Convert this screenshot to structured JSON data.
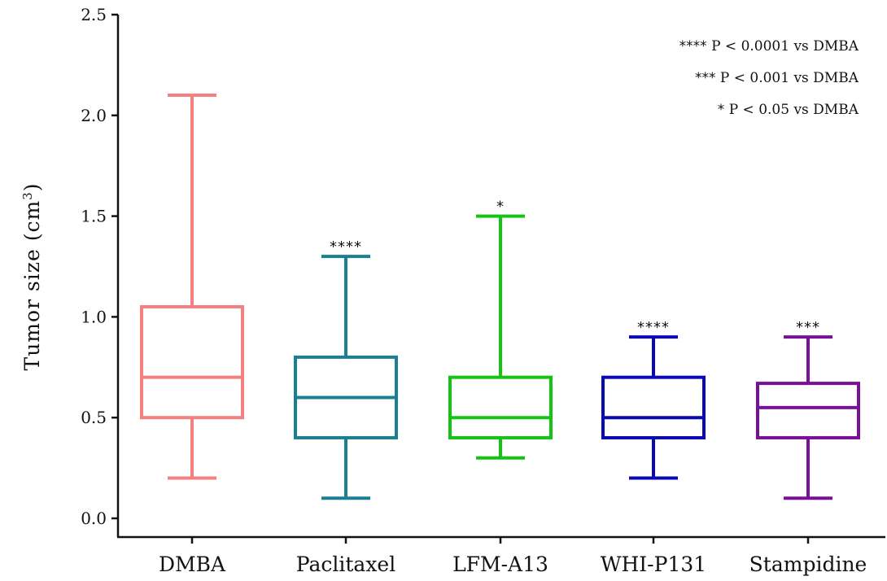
{
  "chart_data": {
    "type": "box",
    "title": "",
    "xlabel": "",
    "ylabel": "Tumor size (cm",
    "ylabel_sup": "3",
    "ylabel_close": ")",
    "ylim": [
      0.0,
      2.5
    ],
    "yticks": [
      0.0,
      0.5,
      1.0,
      1.5,
      2.0,
      2.5
    ],
    "ytick_labels": [
      "0.0",
      "0.5",
      "1.0",
      "1.5",
      "2.0",
      "2.5"
    ],
    "categories": [
      "DMBA",
      "Paclitaxel",
      "LFM-A13",
      "WHI-P131",
      "Stampidine"
    ],
    "boxes": [
      {
        "name": "DMBA",
        "min": 0.2,
        "q1": 0.5,
        "median": 0.7,
        "q3": 1.05,
        "max": 2.1,
        "color": "#F58080",
        "significance": ""
      },
      {
        "name": "Paclitaxel",
        "min": 0.1,
        "q1": 0.4,
        "median": 0.6,
        "q3": 0.8,
        "max": 1.3,
        "color": "#1A7F93",
        "significance": "****"
      },
      {
        "name": "LFM-A13",
        "min": 0.3,
        "q1": 0.4,
        "median": 0.5,
        "q3": 0.7,
        "max": 1.5,
        "color": "#14C414",
        "significance": "*"
      },
      {
        "name": "WHI-P131",
        "min": 0.2,
        "q1": 0.4,
        "median": 0.5,
        "q3": 0.7,
        "max": 0.9,
        "color": "#0A0AB4",
        "significance": "****"
      },
      {
        "name": "Stampidine",
        "min": 0.1,
        "q1": 0.4,
        "median": 0.55,
        "q3": 0.67,
        "max": 0.9,
        "color": "#7A0F9A",
        "significance": "***"
      }
    ],
    "legend_position": "top-right",
    "legend": [
      {
        "stars": "****",
        "text": "P < 0.0001 vs DMBA"
      },
      {
        "stars": "***",
        "text": "P < 0.001 vs DMBA"
      },
      {
        "stars": "*",
        "text": "P < 0.05 vs DMBA"
      }
    ],
    "grid": false
  }
}
